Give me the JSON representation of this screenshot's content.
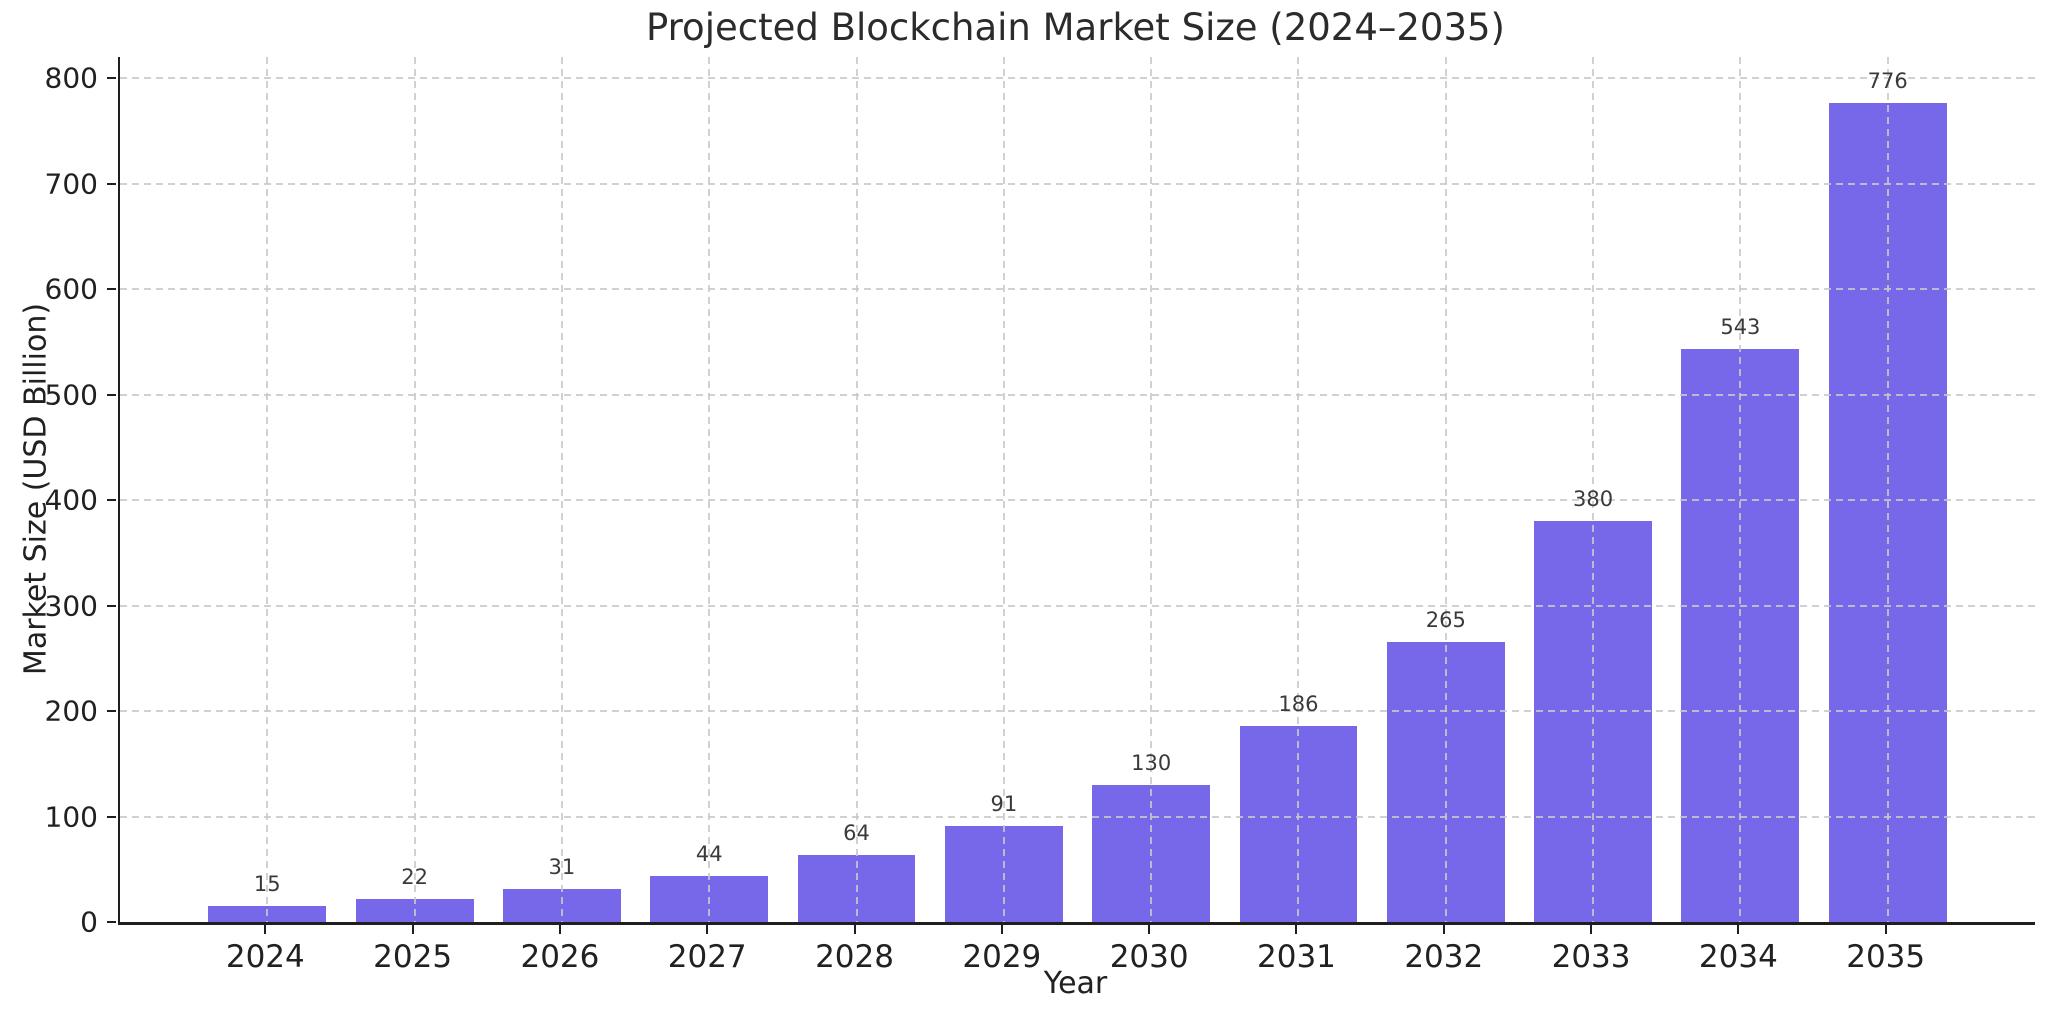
{
  "chart_data": {
    "type": "bar",
    "title": "Projected Blockchain Market Size (2024–2035)",
    "xlabel": "Year",
    "ylabel": "Market Size (USD Billion)",
    "categories": [
      "2024",
      "2025",
      "2026",
      "2027",
      "2028",
      "2029",
      "2030",
      "2031",
      "2032",
      "2033",
      "2034",
      "2035"
    ],
    "values": [
      15,
      22,
      31,
      44,
      64,
      91,
      130,
      186,
      265,
      380,
      543,
      776
    ],
    "bar_value_labels": [
      "15",
      "22",
      "31",
      "44",
      "64",
      "91",
      "130",
      "186",
      "265",
      "380",
      "543",
      "776"
    ],
    "yticks": [
      0,
      100,
      200,
      300,
      400,
      500,
      600,
      700,
      800
    ],
    "ylim": [
      0,
      820
    ],
    "bar_color": "#7668E8",
    "grid": "dashed gridlines on both axes, drawn above bars",
    "gridline_color": "#c9c9c9",
    "text_color": "#212121",
    "legend": "none",
    "bar_width_fraction": 0.8
  }
}
